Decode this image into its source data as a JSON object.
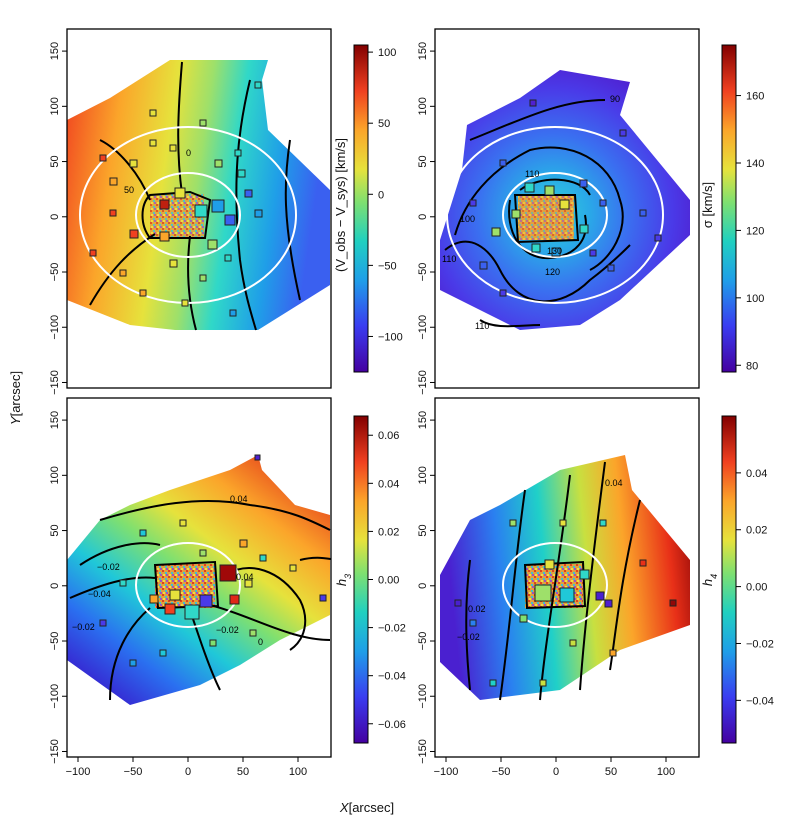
{
  "figure": {
    "xlabel_main": "X",
    "xlabel_unit": "[arcsec]",
    "ylabel_main": "Y",
    "ylabel_unit": "[arcsec]"
  },
  "chart_data": [
    {
      "type": "heatmap",
      "panel": "top-left",
      "quantity": "velocity",
      "colorbar_label": "(V_obs − V_sys) [km/s]",
      "colorbar_range": [
        -125,
        105
      ],
      "colorbar_ticks": [
        100,
        50,
        0,
        -50,
        -100
      ],
      "contour_labels": [
        "50",
        "0"
      ],
      "xlim": [
        -110,
        130
      ],
      "ylim": [
        -155,
        170
      ],
      "yticks": [
        150,
        100,
        50,
        0,
        -50,
        -100,
        -150
      ]
    },
    {
      "type": "heatmap",
      "panel": "top-right",
      "quantity": "dispersion",
      "colorbar_label": "σ [km/s]",
      "colorbar_range": [
        78,
        175
      ],
      "colorbar_ticks": [
        160,
        140,
        120,
        100,
        80
      ],
      "contour_labels": [
        "90",
        "100",
        "110",
        "110",
        "110",
        "120",
        "130"
      ],
      "xlim": [
        -110,
        130
      ],
      "ylim": [
        -155,
        170
      ],
      "yticks": [
        150,
        100,
        50,
        0,
        -50,
        -100,
        -150
      ]
    },
    {
      "type": "heatmap",
      "panel": "bottom-left",
      "quantity": "h3",
      "colorbar_label": "h3",
      "colorbar_range": [
        -0.068,
        0.068
      ],
      "colorbar_ticks": [
        "0.06",
        "0.04",
        "0.02",
        "0.00",
        "−0.02",
        "−0.04",
        "−0.06"
      ],
      "contour_labels": [
        "0.04",
        "−0.02",
        "−0.04",
        "0.04",
        "−0.02",
        "0",
        "−0.02"
      ],
      "xlim": [
        -110,
        130
      ],
      "ylim": [
        -155,
        170
      ],
      "xticks": [
        -100,
        -50,
        0,
        50,
        100
      ],
      "yticks": [
        150,
        100,
        50,
        0,
        -50,
        -100,
        -150
      ]
    },
    {
      "type": "heatmap",
      "panel": "bottom-right",
      "quantity": "h4",
      "colorbar_label": "h4",
      "colorbar_range": [
        -0.055,
        0.06
      ],
      "colorbar_ticks": [
        "0.04",
        "0.02",
        "0.00",
        "−0.02",
        "−0.04"
      ],
      "contour_labels": [
        "0.04",
        "0.02",
        "−0.02"
      ],
      "xlim": [
        -110,
        130
      ],
      "ylim": [
        -155,
        170
      ],
      "xticks": [
        -100,
        -50,
        0,
        50,
        100
      ],
      "yticks": [
        150,
        100,
        50,
        0,
        -50,
        -100,
        -150
      ]
    }
  ]
}
